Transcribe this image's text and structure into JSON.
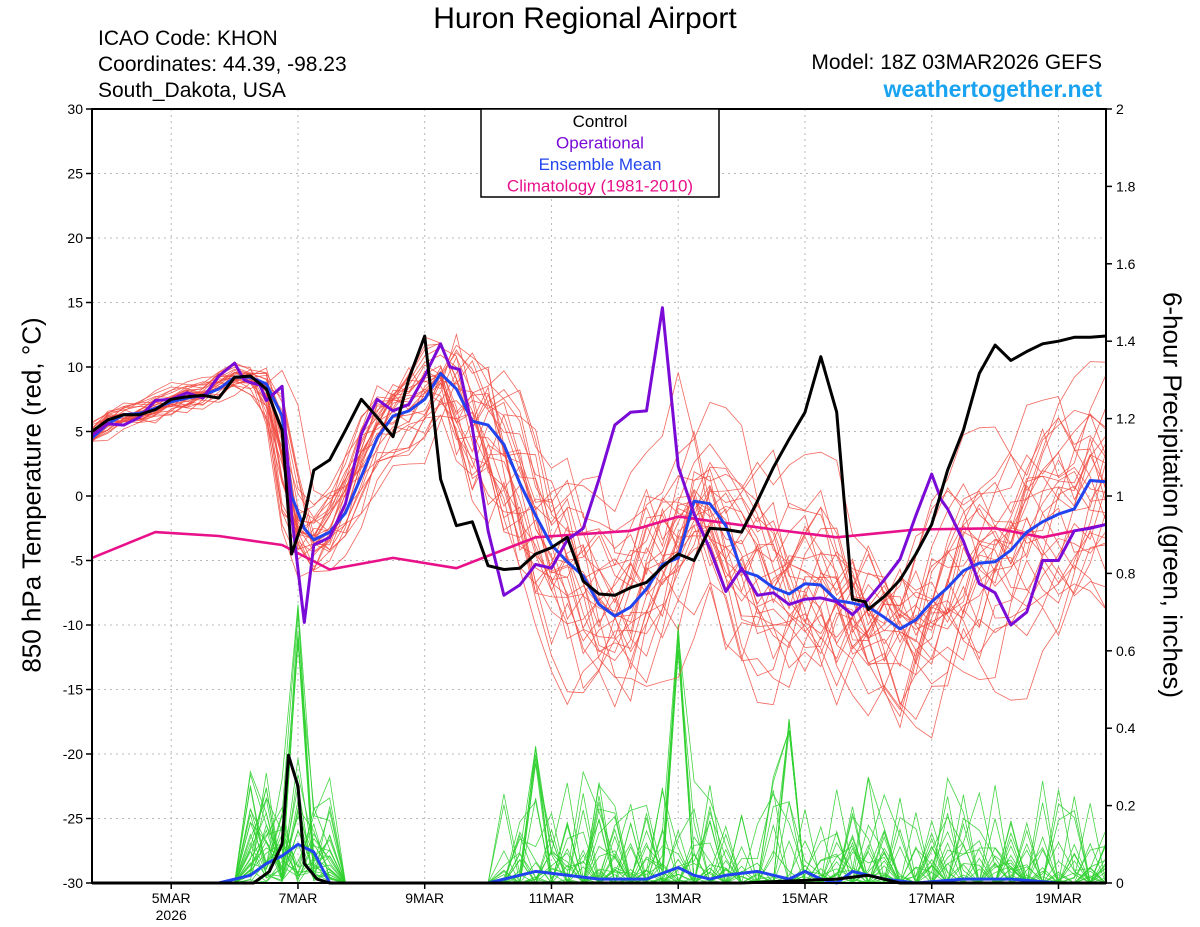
{
  "header": {
    "title": "Huron Regional Airport",
    "icao": "ICAO Code: KHON",
    "coordinates": "Coordinates: 44.39, -98.23",
    "location": "South_Dakota, USA",
    "model": "Model: 18Z 03MAR2026 GEFS",
    "site": "weathertogether.net"
  },
  "colors": {
    "control": "#000000",
    "operational": "#7a0ad6",
    "ensemble_mean": "#2244ee",
    "climatology": "#e8118a",
    "members_temp": "#f04a40",
    "members_precip": "#30d030",
    "site": "#1aa3f0"
  },
  "chart_data": {
    "type": "line",
    "title": "Huron Regional Airport",
    "ylabel": "850 hPa Temperature (red, °C)",
    "y2label": "6-hour Precipitation (green, inches)",
    "ylim": [
      -30,
      30
    ],
    "y2lim": [
      0,
      2
    ],
    "xlim": [
      3.75,
      19.75
    ],
    "yticks": [
      30,
      25,
      20,
      15,
      10,
      5,
      0,
      -5,
      -10,
      -15,
      -20,
      -25,
      -30
    ],
    "y2ticks": [
      2,
      1.8,
      1.6,
      1.4,
      1.2,
      1,
      0.8,
      0.6,
      0.4,
      0.2,
      0
    ],
    "xticks": [
      {
        "x": 5,
        "label": "5MAR",
        "sub": "2026"
      },
      {
        "x": 7,
        "label": "7MAR",
        "sub": ""
      },
      {
        "x": 9,
        "label": "9MAR",
        "sub": ""
      },
      {
        "x": 11,
        "label": "11MAR",
        "sub": ""
      },
      {
        "x": 13,
        "label": "13MAR",
        "sub": ""
      },
      {
        "x": 15,
        "label": "15MAR",
        "sub": ""
      },
      {
        "x": 17,
        "label": "17MAR",
        "sub": ""
      },
      {
        "x": 19,
        "label": "19MAR",
        "sub": ""
      }
    ],
    "legend": {
      "position": "top-center",
      "entries": [
        {
          "key": "control",
          "label": "Control"
        },
        {
          "key": "operational",
          "label": "Operational"
        },
        {
          "key": "ensemble_mean",
          "label": "Ensemble Mean"
        },
        {
          "key": "climatology",
          "label": "Climatology (1981-2010)"
        }
      ]
    },
    "series": [
      {
        "name": "Climatology",
        "key": "climatology",
        "axis": "temp",
        "x": [
          3.75,
          4.75,
          5.75,
          6.75,
          7.5,
          8.5,
          9.5,
          10.75,
          12.25,
          13.0,
          14.5,
          15.5,
          16.75,
          18.0,
          18.75,
          19.75
        ],
        "y": [
          -4.8,
          -2.8,
          -3.1,
          -3.8,
          -5.7,
          -4.8,
          -5.6,
          -3.2,
          -2.7,
          -1.6,
          -2.6,
          -3.2,
          -2.6,
          -2.5,
          -3.2,
          -2.2
        ]
      },
      {
        "name": "Ensemble Mean",
        "key": "ensemble_mean",
        "axis": "temp",
        "x": [
          3.75,
          4.0,
          4.25,
          4.5,
          4.75,
          5.0,
          5.25,
          5.5,
          5.75,
          6.0,
          6.25,
          6.5,
          6.75,
          6.9,
          7.1,
          7.25,
          7.5,
          7.75,
          8.0,
          8.25,
          8.5,
          8.75,
          9.0,
          9.25,
          9.5,
          9.75,
          10.0,
          10.25,
          10.5,
          10.75,
          11.0,
          11.25,
          11.5,
          11.75,
          12.0,
          12.25,
          12.5,
          12.75,
          13.0,
          13.25,
          13.5,
          13.75,
          14.0,
          14.25,
          14.5,
          14.75,
          15.0,
          15.25,
          15.5,
          15.75,
          16.0,
          16.25,
          16.5,
          16.75,
          17.0,
          17.25,
          17.5,
          17.75,
          18.0,
          18.25,
          18.5,
          18.75,
          19.0,
          19.25,
          19.5,
          19.75
        ],
        "y": [
          4.5,
          5.6,
          6.3,
          6.4,
          6.8,
          7.3,
          7.6,
          7.8,
          8.3,
          9.2,
          9.2,
          8.7,
          6.2,
          0.0,
          -2.5,
          -3.4,
          -2.8,
          -1.3,
          1.5,
          4.5,
          6.2,
          6.6,
          7.5,
          9.5,
          8.3,
          5.8,
          5.5,
          4.0,
          1.0,
          -1.5,
          -3.8,
          -5.1,
          -6.2,
          -8.4,
          -9.3,
          -8.6,
          -7.2,
          -5.3,
          -4.8,
          -0.4,
          -0.6,
          -2.3,
          -5.8,
          -6.2,
          -7.1,
          -7.6,
          -6.8,
          -6.9,
          -8.1,
          -8.3,
          -8.6,
          -9.4,
          -10.3,
          -9.6,
          -8.2,
          -7.1,
          -5.8,
          -5.2,
          -5.1,
          -4.2,
          -2.8,
          -2.0,
          -1.4,
          -1.0,
          1.2,
          1.1
        ]
      },
      {
        "name": "Operational",
        "key": "operational",
        "axis": "temp",
        "x": [
          3.75,
          4.0,
          4.25,
          4.5,
          4.75,
          5.0,
          5.25,
          5.5,
          5.75,
          6.0,
          6.15,
          6.25,
          6.4,
          6.5,
          6.75,
          6.9,
          7.1,
          7.25,
          7.5,
          7.75,
          8.0,
          8.25,
          8.5,
          8.75,
          9.0,
          9.25,
          9.4,
          9.55,
          9.75,
          10.0,
          10.25,
          10.5,
          10.75,
          11.0,
          11.25,
          11.5,
          11.75,
          12.0,
          12.25,
          12.5,
          12.75,
          13.0,
          13.25,
          13.5,
          13.75,
          14.0,
          14.25,
          14.5,
          14.75,
          15.0,
          15.25,
          15.5,
          15.75,
          16.0,
          16.25,
          16.5,
          16.75,
          17.0,
          17.15,
          17.25,
          17.5,
          17.75,
          18.0,
          18.25,
          18.5,
          18.75,
          19.0,
          19.25,
          19.5,
          19.75
        ],
        "y": [
          4.7,
          5.6,
          5.5,
          6.1,
          7.4,
          7.5,
          8.0,
          7.6,
          9.3,
          10.3,
          9.0,
          8.8,
          8.6,
          7.4,
          8.5,
          -1.5,
          -9.8,
          -3.8,
          -3.2,
          -0.6,
          4.8,
          7.5,
          6.6,
          7.1,
          9.3,
          11.8,
          10.0,
          9.8,
          5.3,
          -2.7,
          -7.7,
          -6.9,
          -5.3,
          -5.6,
          -3.4,
          -2.5,
          1.3,
          5.5,
          6.5,
          6.6,
          14.6,
          2.3,
          -1.4,
          -4.1,
          -7.4,
          -5.6,
          -7.7,
          -7.5,
          -8.4,
          -8.0,
          -7.9,
          -8.2,
          -9.2,
          -8.0,
          -6.5,
          -4.9,
          -1.5,
          1.7,
          -0.3,
          -1.0,
          -3.5,
          -6.8,
          -7.5,
          -10.0,
          -9.0,
          -5.0,
          -5.0,
          -2.7,
          -2.5,
          -2.2
        ]
      },
      {
        "name": "Control",
        "key": "control",
        "axis": "temp",
        "x": [
          3.75,
          4.0,
          4.25,
          4.5,
          4.75,
          5.0,
          5.25,
          5.5,
          5.75,
          6.0,
          6.25,
          6.5,
          6.75,
          6.9,
          7.1,
          7.25,
          7.5,
          7.75,
          8.0,
          8.25,
          8.5,
          8.75,
          9.0,
          9.25,
          9.5,
          9.75,
          10.0,
          10.25,
          10.5,
          10.75,
          11.0,
          11.25,
          11.5,
          11.75,
          12.0,
          12.25,
          12.5,
          12.75,
          13.0,
          13.25,
          13.5,
          13.75,
          14.0,
          14.25,
          14.5,
          14.75,
          15.0,
          15.25,
          15.5,
          15.75,
          15.95,
          16.0,
          16.25,
          16.5,
          16.75,
          17.0,
          17.25,
          17.5,
          17.75,
          18.0,
          18.25,
          18.5,
          18.75,
          19.0,
          19.25,
          19.5,
          19.75
        ],
        "y": [
          5.0,
          5.9,
          6.3,
          6.3,
          6.7,
          7.5,
          7.7,
          7.8,
          7.6,
          9.2,
          9.3,
          8.3,
          5.1,
          -4.5,
          -1.6,
          2.0,
          2.8,
          5.1,
          7.5,
          6.1,
          4.6,
          9.1,
          12.4,
          1.3,
          -2.3,
          -2.0,
          -5.4,
          -5.7,
          -5.6,
          -4.5,
          -4.0,
          -3.2,
          -6.6,
          -7.6,
          -7.7,
          -7.1,
          -6.7,
          -5.5,
          -4.5,
          -5.0,
          -2.5,
          -2.6,
          -2.8,
          -0.4,
          2.2,
          4.4,
          6.5,
          10.8,
          6.5,
          -8.0,
          -8.2,
          -8.8,
          -7.8,
          -6.5,
          -4.5,
          -2.2,
          2.0,
          5.1,
          9.5,
          11.7,
          10.5,
          11.2,
          11.8,
          12.0,
          12.3,
          12.3,
          12.4
        ]
      },
      {
        "name": "Ensemble Mean Precipitation",
        "key": "ensemble_mean",
        "axis": "precip",
        "x": [
          3.75,
          5.75,
          6.25,
          6.5,
          6.75,
          7.0,
          7.25,
          7.5,
          8.5,
          10.0,
          10.75,
          11.25,
          11.75,
          12.5,
          13.0,
          13.25,
          13.5,
          13.75,
          14.25,
          14.75,
          15.0,
          15.25,
          15.5,
          15.75,
          16.25,
          16.75,
          17.5,
          18.25,
          19.0,
          19.75
        ],
        "y": [
          0,
          0,
          0.02,
          0.05,
          0.07,
          0.1,
          0.08,
          0.0,
          0,
          0.0,
          0.03,
          0.02,
          0.01,
          0.01,
          0.04,
          0.02,
          0.01,
          0.02,
          0.03,
          0.01,
          0.03,
          0.01,
          0.0,
          0.03,
          0.01,
          0.0,
          0.01,
          0.01,
          0.0,
          0.0
        ]
      },
      {
        "name": "Control Precipitation",
        "key": "control",
        "axis": "precip",
        "x": [
          3.75,
          6.3,
          6.55,
          6.75,
          6.85,
          7.0,
          7.1,
          7.3,
          7.5,
          12.0,
          12.5,
          13.0,
          14.0,
          15.5,
          16.0,
          16.5,
          19.75
        ],
        "y": [
          0,
          0,
          0.03,
          0.1,
          0.33,
          0.25,
          0.05,
          0.01,
          0,
          0,
          0,
          0,
          0,
          0.01,
          0.02,
          0,
          0
        ]
      }
    ],
    "members": {
      "temperature_count": 30,
      "precipitation_count": 30,
      "precip_peaks": [
        {
          "x": 7.0,
          "y": 0.72,
          "label": "member maximum near 7MAR"
        },
        {
          "x": 12.9,
          "y": 0.7,
          "label": "member maximum near 13MAR"
        },
        {
          "x": 10.75,
          "y": 0.36,
          "label": "member peak near 11MAR"
        },
        {
          "x": 14.75,
          "y": 0.46,
          "label": "member peak near 15MAR"
        }
      ]
    }
  }
}
